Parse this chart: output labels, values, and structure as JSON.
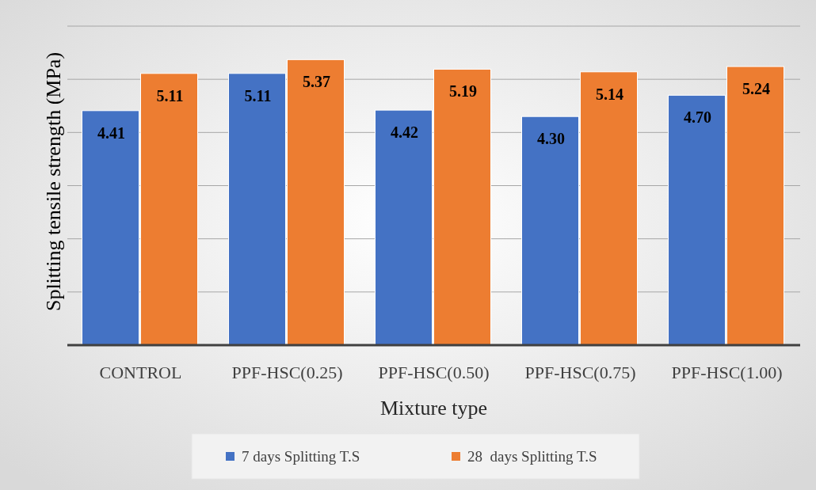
{
  "chart_data": {
    "type": "bar",
    "categories": [
      "CONTROL",
      "PPF-HSC(0.25)",
      "PPF-HSC(0.50)",
      "PPF-HSC(0.75)",
      "PPF-HSC(1.00)"
    ],
    "series": [
      {
        "name": "7 days Splitting T.S",
        "color": "#4472c4",
        "values": [
          4.41,
          5.11,
          4.42,
          4.3,
          4.7
        ],
        "value_labels": [
          "4.41",
          "5.11",
          "4.42",
          "4.30",
          "4.70"
        ]
      },
      {
        "name": "28  days Splitting T.S",
        "color": "#ed7d31",
        "values": [
          5.11,
          5.37,
          5.19,
          5.14,
          5.24
        ],
        "value_labels": [
          "5.11",
          "5.37",
          "5.19",
          "5.14",
          "5.24"
        ]
      }
    ],
    "xlabel": "Mixture type",
    "ylabel": "Splitting tensile strength (MPa)",
    "ylim": [
      0,
      6
    ],
    "yticks": [
      {
        "value": 0,
        "label": null
      },
      {
        "value": 1,
        "label": null
      },
      {
        "value": 2,
        "label": null
      },
      {
        "value": 3,
        "label": null
      },
      {
        "value": 4,
        "label": null
      },
      {
        "value": 5,
        "label": null
      },
      {
        "value": 6,
        "label": null
      }
    ],
    "tick_labels": "x",
    "grid": "y",
    "legend": "bottom"
  }
}
